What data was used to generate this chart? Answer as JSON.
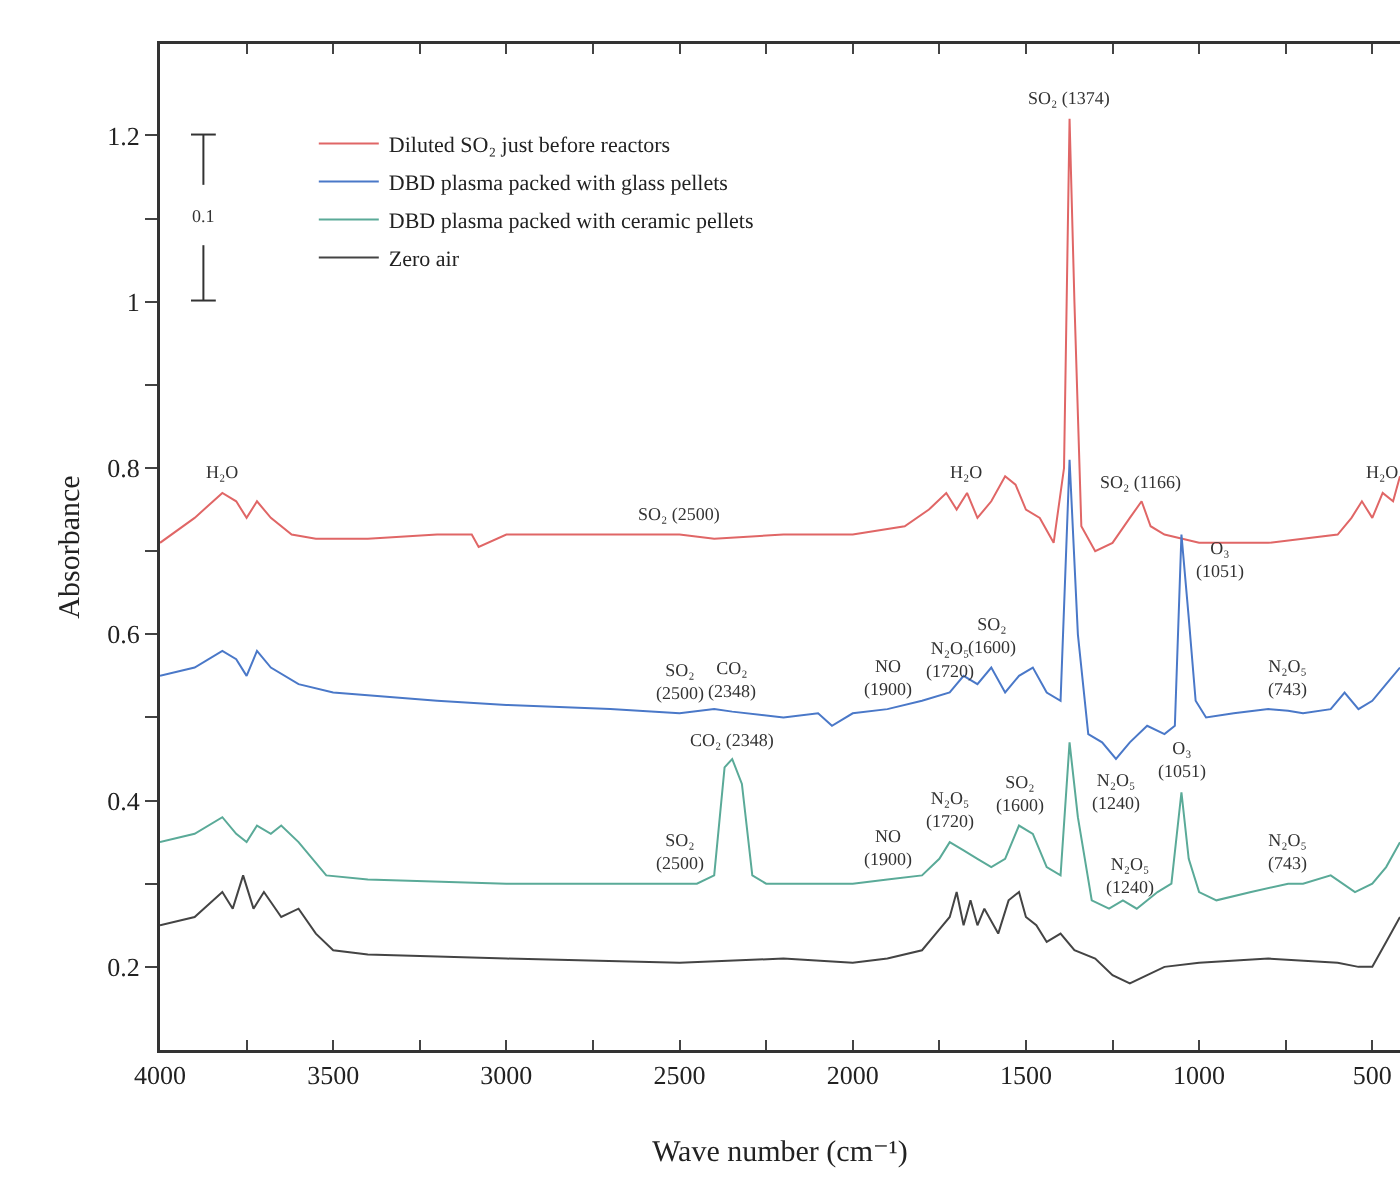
{
  "chart_data": {
    "type": "line",
    "xlabel": "Wave number (cm⁻¹)",
    "ylabel": "Absorbance",
    "xlim": [
      4000,
      420
    ],
    "ylim": [
      0.1,
      1.31
    ],
    "xticks": [
      4000,
      {
        "value": 3750,
        "label": null
      },
      3500,
      {
        "value": 3250,
        "label": null
      },
      3000,
      {
        "value": 2750,
        "label": null
      },
      2500,
      {
        "value": 2250,
        "label": null
      },
      2000,
      {
        "value": 1750,
        "label": null
      },
      1500,
      {
        "value": 1250,
        "label": null
      },
      1000,
      {
        "value": 750,
        "label": null
      },
      500
    ],
    "yticks": [
      0.2,
      {
        "value": 0.3,
        "label": null
      },
      0.4,
      {
        "value": 0.5,
        "label": null
      },
      0.6,
      {
        "value": 0.7,
        "label": null
      },
      0.8,
      {
        "value": 0.9,
        "label": null
      },
      1.0,
      {
        "value": 1.1,
        "label": null
      },
      1.2
    ],
    "grid": false,
    "legend": "top left",
    "marker": "none",
    "line_style": "solid",
    "series": [
      {
        "name": "Diluted SO₂ just before reactors",
        "color": "#e06666",
        "x": [
          4000,
          3900,
          3820,
          3780,
          3750,
          3720,
          3680,
          3620,
          3550,
          3400,
          3200,
          3100,
          3080,
          3000,
          2700,
          2500,
          2400,
          2200,
          2000,
          1850,
          1780,
          1730,
          1700,
          1670,
          1640,
          1600,
          1560,
          1530,
          1500,
          1460,
          1420,
          1390,
          1374,
          1360,
          1340,
          1300,
          1250,
          1200,
          1166,
          1140,
          1100,
          1000,
          800,
          600,
          560,
          530,
          500,
          470,
          440,
          420
        ],
        "values": [
          0.71,
          0.74,
          0.77,
          0.76,
          0.74,
          0.76,
          0.74,
          0.72,
          0.715,
          0.715,
          0.72,
          0.72,
          0.705,
          0.72,
          0.72,
          0.72,
          0.715,
          0.72,
          0.72,
          0.73,
          0.75,
          0.77,
          0.75,
          0.77,
          0.74,
          0.76,
          0.79,
          0.78,
          0.75,
          0.74,
          0.71,
          0.8,
          1.22,
          1.0,
          0.73,
          0.7,
          0.71,
          0.74,
          0.76,
          0.73,
          0.72,
          0.71,
          0.71,
          0.72,
          0.74,
          0.76,
          0.74,
          0.77,
          0.76,
          0.79
        ]
      },
      {
        "name": "DBD plasma packed with glass pellets",
        "color": "#4a78c8",
        "x": [
          4000,
          3900,
          3820,
          3780,
          3750,
          3720,
          3680,
          3600,
          3500,
          3200,
          3000,
          2700,
          2500,
          2400,
          2348,
          2200,
          2100,
          2060,
          2000,
          1900,
          1800,
          1720,
          1680,
          1640,
          1600,
          1560,
          1520,
          1480,
          1440,
          1400,
          1374,
          1350,
          1320,
          1280,
          1240,
          1200,
          1150,
          1100,
          1070,
          1051,
          1030,
          1010,
          980,
          900,
          800,
          743,
          700,
          620,
          580,
          540,
          500,
          460,
          420
        ],
        "values": [
          0.55,
          0.56,
          0.58,
          0.57,
          0.55,
          0.58,
          0.56,
          0.54,
          0.53,
          0.52,
          0.515,
          0.51,
          0.505,
          0.51,
          0.507,
          0.5,
          0.505,
          0.49,
          0.505,
          0.51,
          0.52,
          0.53,
          0.55,
          0.54,
          0.56,
          0.53,
          0.55,
          0.56,
          0.53,
          0.52,
          0.81,
          0.6,
          0.48,
          0.47,
          0.45,
          0.47,
          0.49,
          0.48,
          0.49,
          0.72,
          0.62,
          0.52,
          0.5,
          0.505,
          0.51,
          0.508,
          0.505,
          0.51,
          0.53,
          0.51,
          0.52,
          0.54,
          0.56
        ]
      },
      {
        "name": "DBD plasma packed with ceramic pellets",
        "color": "#5aaa98",
        "x": [
          4000,
          3900,
          3820,
          3780,
          3750,
          3720,
          3680,
          3650,
          3600,
          3520,
          3400,
          3000,
          2700,
          2450,
          2400,
          2370,
          2348,
          2320,
          2290,
          2250,
          2000,
          1900,
          1800,
          1750,
          1720,
          1680,
          1640,
          1600,
          1560,
          1520,
          1480,
          1440,
          1400,
          1374,
          1350,
          1310,
          1260,
          1220,
          1180,
          1120,
          1080,
          1051,
          1030,
          1000,
          950,
          850,
          743,
          700,
          620,
          550,
          500,
          460,
          420
        ],
        "values": [
          0.35,
          0.36,
          0.38,
          0.36,
          0.35,
          0.37,
          0.36,
          0.37,
          0.35,
          0.31,
          0.305,
          0.3,
          0.3,
          0.3,
          0.31,
          0.44,
          0.45,
          0.42,
          0.31,
          0.3,
          0.3,
          0.305,
          0.31,
          0.33,
          0.35,
          0.34,
          0.33,
          0.32,
          0.33,
          0.37,
          0.36,
          0.32,
          0.31,
          0.47,
          0.38,
          0.28,
          0.27,
          0.28,
          0.27,
          0.29,
          0.3,
          0.41,
          0.33,
          0.29,
          0.28,
          0.29,
          0.3,
          0.3,
          0.31,
          0.29,
          0.3,
          0.32,
          0.35
        ]
      },
      {
        "name": "Zero air",
        "color": "#444444",
        "x": [
          4000,
          3900,
          3820,
          3790,
          3760,
          3730,
          3700,
          3650,
          3600,
          3550,
          3500,
          3400,
          3000,
          2500,
          2200,
          2000,
          1900,
          1800,
          1760,
          1720,
          1700,
          1680,
          1660,
          1640,
          1620,
          1580,
          1550,
          1520,
          1500,
          1470,
          1440,
          1400,
          1360,
          1300,
          1250,
          1200,
          1150,
          1100,
          1000,
          800,
          600,
          540,
          500,
          460,
          420
        ],
        "values": [
          0.25,
          0.26,
          0.29,
          0.27,
          0.31,
          0.27,
          0.29,
          0.26,
          0.27,
          0.24,
          0.22,
          0.215,
          0.21,
          0.205,
          0.21,
          0.205,
          0.21,
          0.22,
          0.24,
          0.26,
          0.29,
          0.25,
          0.28,
          0.25,
          0.27,
          0.24,
          0.28,
          0.29,
          0.26,
          0.25,
          0.23,
          0.24,
          0.22,
          0.21,
          0.19,
          0.18,
          0.19,
          0.2,
          0.205,
          0.21,
          0.205,
          0.2,
          0.2,
          0.23,
          0.26
        ]
      }
    ],
    "annotations": [
      {
        "text": "H₂O",
        "x": 3820,
        "y": 0.77
      },
      {
        "text": "SO₂ (2500)",
        "x": 2500,
        "y": 0.72
      },
      {
        "text": "H₂O",
        "x": 1670,
        "y": 0.77
      },
      {
        "text": "SO₂ (1374)",
        "x": 1374,
        "y": 1.22
      },
      {
        "text": "SO₂ (1166)",
        "x": 1166,
        "y": 0.76
      },
      {
        "text": "H₂O",
        "x": 470,
        "y": 0.77
      },
      {
        "text": "SO₂\n(2500)",
        "x": 2500,
        "y": 0.505
      },
      {
        "text": "CO₂\n(2348)",
        "x": 2348,
        "y": 0.507
      },
      {
        "text": "NO\n(1900)",
        "x": 1900,
        "y": 0.51
      },
      {
        "text": "N₂O₅\n(1720)",
        "x": 1720,
        "y": 0.53
      },
      {
        "text": "SO₂\n(1600)",
        "x": 1600,
        "y": 0.56
      },
      {
        "text": "N₂O₅\n(1240)",
        "x": 1240,
        "y": 0.45
      },
      {
        "text": "O₃\n(1051)",
        "x": 1051,
        "y": 0.72
      },
      {
        "text": "N₂O₅\n(743)",
        "x": 743,
        "y": 0.508
      },
      {
        "text": "CO₂ (2348)",
        "x": 2348,
        "y": 0.45
      },
      {
        "text": "SO₂\n(2500)",
        "x": 2500,
        "y": 0.3
      },
      {
        "text": "NO\n(1900)",
        "x": 1900,
        "y": 0.305
      },
      {
        "text": "N₂O₅\n(1720)",
        "x": 1720,
        "y": 0.35
      },
      {
        "text": "SO₂\n(1600)",
        "x": 1520,
        "y": 0.37
      },
      {
        "text": "N₂O₅\n(1240)",
        "x": 1260,
        "y": 0.27
      },
      {
        "text": "O₃\n(1051)",
        "x": 1051,
        "y": 0.41
      },
      {
        "text": "N₂O₅\n(743)",
        "x": 743,
        "y": 0.3
      },
      "0.1"
    ]
  }
}
